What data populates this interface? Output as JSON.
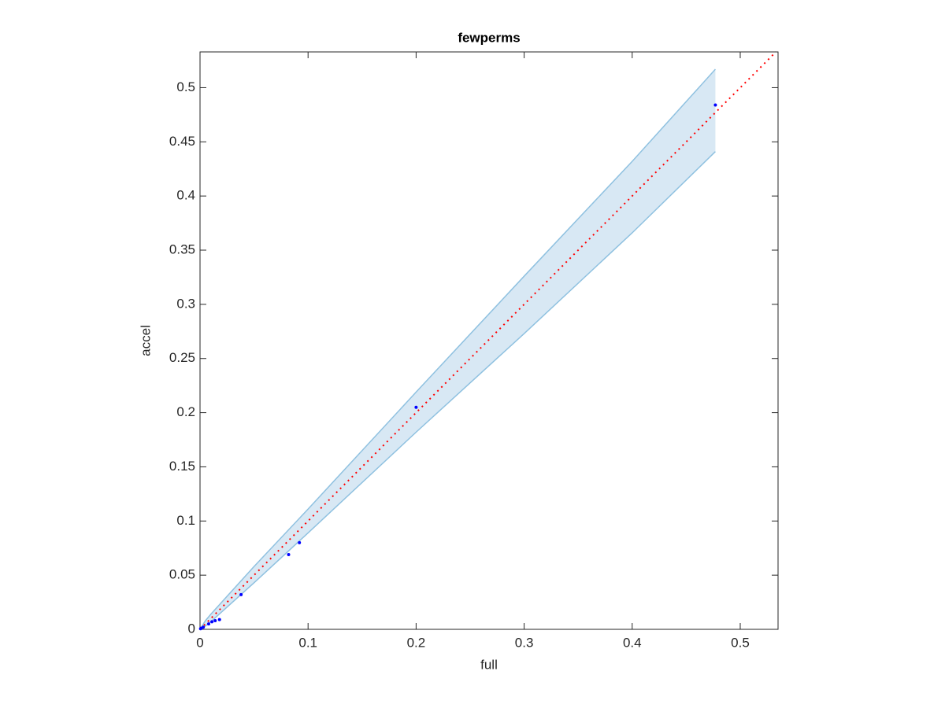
{
  "chart_data": {
    "type": "scatter",
    "title": "fewperms",
    "x_label": "full",
    "y_label": "accel",
    "xlim": [
      0,
      0.535
    ],
    "ylim": [
      0,
      0.533
    ],
    "xticks": [
      0,
      0.1,
      0.2,
      0.3,
      0.4,
      0.5
    ],
    "yticks": [
      0,
      0.05,
      0.1,
      0.15,
      0.2,
      0.25,
      0.3,
      0.35,
      0.4,
      0.45,
      0.5
    ],
    "band": {
      "color": "#8fc1e0",
      "fill": "#d8e8f4",
      "x": [
        0,
        0.005,
        0.01,
        0.02,
        0.05,
        0.1,
        0.2,
        0.3,
        0.4,
        0.477
      ],
      "upper": [
        0,
        0.008,
        0.014,
        0.025,
        0.058,
        0.111,
        0.219,
        0.326,
        0.432,
        0.517
      ],
      "lower": [
        0,
        0.003,
        0.007,
        0.016,
        0.043,
        0.089,
        0.182,
        0.273,
        0.366,
        0.441
      ]
    },
    "series": [
      {
        "color": "#0000ff",
        "x": [
          0.477,
          0.2,
          0.092,
          0.082,
          0.038,
          0.018,
          0.014,
          0.011,
          0.008,
          0.003,
          0.001,
          0.0005
        ],
        "values": [
          0.484,
          0.205,
          0.08,
          0.069,
          0.032,
          0.009,
          0.008,
          0.007,
          0.005,
          0.002,
          0.001,
          0.0005
        ]
      }
    ],
    "reference_color": "#ff0000"
  }
}
